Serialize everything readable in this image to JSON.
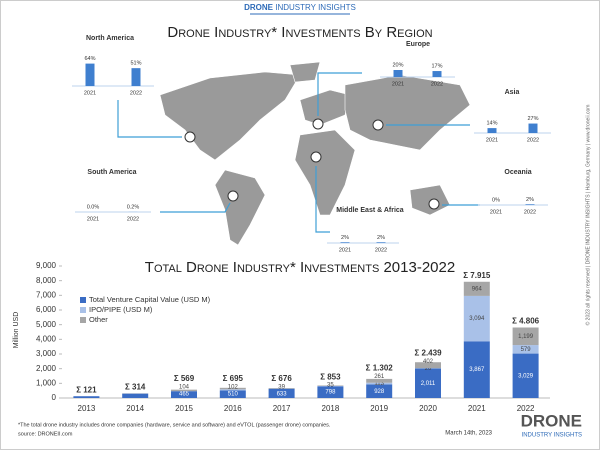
{
  "header": {
    "brand": "DRONE",
    "brand_rest": "INDUSTRY INSIGHTS"
  },
  "chart_data": [
    {
      "type": "region-bars",
      "title": "Drone Industry* Investments By Region",
      "color": "#3f7fcf",
      "panels": [
        {
          "name": "North America",
          "categories": [
            "2021",
            "2022"
          ],
          "values": [
            64,
            51
          ],
          "value_labels": [
            "64%",
            "51%"
          ]
        },
        {
          "name": "Europe",
          "categories": [
            "2021",
            "2022"
          ],
          "values": [
            20,
            17
          ],
          "value_labels": [
            "20%",
            "17%"
          ]
        },
        {
          "name": "Asia",
          "categories": [
            "2021",
            "2022"
          ],
          "values": [
            14,
            27
          ],
          "value_labels": [
            "14%",
            "27%"
          ]
        },
        {
          "name": "South America",
          "categories": [
            "2021",
            "2022"
          ],
          "values": [
            0.0,
            0.2
          ],
          "value_labels": [
            "0.0%",
            "0.2%"
          ]
        },
        {
          "name": "Oceania",
          "categories": [
            "2021",
            "2022"
          ],
          "values": [
            0,
            2
          ],
          "value_labels": [
            "0%",
            "2%"
          ]
        },
        {
          "name": "Middle East & Africa",
          "categories": [
            "2021",
            "2022"
          ],
          "values": [
            2,
            2
          ],
          "value_labels": [
            "2%",
            "2%"
          ]
        }
      ]
    },
    {
      "type": "stacked-bar",
      "title": "Total Drone Industry* Investments 2013-2022",
      "y_label": "Million USD",
      "categories": [
        "2013",
        "2014",
        "2015",
        "2016",
        "2017",
        "2018",
        "2019",
        "2020",
        "2021",
        "2022"
      ],
      "ylim": [
        0,
        9000
      ],
      "yticks": [
        0,
        {
          "value": 1000,
          "label": "1,000"
        },
        {
          "value": 2000,
          "label": "2,000"
        },
        {
          "value": 3000,
          "label": "3,000"
        },
        {
          "value": 4000,
          "label": "4,000"
        },
        {
          "value": 5000,
          "label": "5,000"
        },
        {
          "value": 6000,
          "label": "6,000"
        },
        {
          "value": 7000,
          "label": "7,000"
        },
        {
          "value": 8000,
          "label": "8,000"
        },
        {
          "value": 9000,
          "label": "9,000"
        }
      ],
      "grid": false,
      "legend": "upper-left",
      "series": [
        {
          "name": "Total Venture Capital Value (USD M)",
          "color": "#3a6cc4",
          "values": [
            121,
            300,
            465,
            510,
            633,
            798,
            928,
            2011,
            3867,
            3029
          ],
          "value_labels": [
            null,
            null,
            "465",
            "510",
            "633",
            "798",
            "928",
            "2,011",
            "3,867",
            "3,029"
          ]
        },
        {
          "name": "IPO/PIPE (USD M)",
          "color": "#a9c1e8",
          "values": [
            0,
            0,
            0,
            83,
            4,
            20,
            113,
            26,
            3094,
            579
          ],
          "value_labels": [
            null,
            null,
            null,
            null,
            null,
            null,
            "113",
            "26",
            "3,094",
            "579"
          ]
        },
        {
          "name": "Other",
          "color": "#a6a6a6",
          "values": [
            0,
            14,
            104,
            102,
            39,
            35,
            261,
            402,
            964,
            1199
          ],
          "value_labels": [
            null,
            null,
            "104",
            "102",
            "39",
            "35",
            "261",
            "402",
            "964",
            "1,199"
          ]
        }
      ],
      "totals": {
        "values": [
          121,
          314,
          569,
          695,
          676,
          853,
          1302,
          2439,
          7915,
          4806
        ],
        "value_labels": [
          "Σ 121",
          "Σ 314",
          "Σ 569",
          "Σ 695",
          "Σ 676",
          "Σ 853",
          "Σ 1.302",
          "Σ 2.439",
          "Σ 7.915",
          "Σ 4.806"
        ]
      }
    }
  ],
  "footer": {
    "note": "*The total drone industry includes drone companies (hardware, service and software) and eVTOL (passenger drone) companies.",
    "source": "source: DRONEII.com",
    "date": "March 14th, 2023",
    "logo": "DRONE",
    "logo_sub": "INDUSTRY INSIGHTS"
  },
  "side_note": "© 2023 all rights reserved  |  DRONE INDUSTRY INSIGHTS  |  Hamburg, Germany  |  www.droneii.com"
}
